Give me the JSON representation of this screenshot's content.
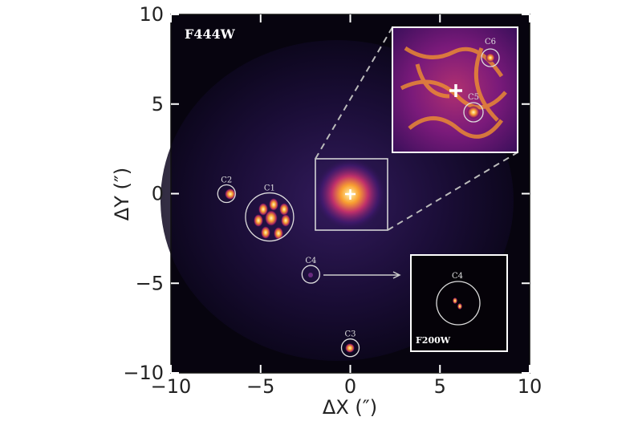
{
  "image": {
    "band_label": "F444W",
    "x_label": "ΔX (″)",
    "y_label": "ΔY (″)",
    "xlim": [
      -10,
      10
    ],
    "ylim": [
      -10,
      10
    ],
    "xticks": [
      {
        "value": -10,
        "label": "−10"
      },
      {
        "value": -5,
        "label": "−5"
      },
      0,
      5,
      10
    ],
    "yticks": [
      {
        "value": -10,
        "label": "−10"
      },
      {
        "value": -5,
        "label": "−5"
      },
      0,
      5,
      10
    ]
  },
  "sources": [
    {
      "label": "C1",
      "x": -4.5,
      "y": -1.3
    },
    {
      "label": "C2",
      "x": -6.9,
      "y": 0
    },
    {
      "label": "C3",
      "x": 0,
      "y": -8.6
    },
    {
      "label": "C4",
      "x": -2.2,
      "y": -4.5
    }
  ],
  "insets": {
    "top": {
      "labels": [
        "C6",
        "C5"
      ]
    },
    "bottom": {
      "label": "C4",
      "band_label": "F200W"
    }
  }
}
